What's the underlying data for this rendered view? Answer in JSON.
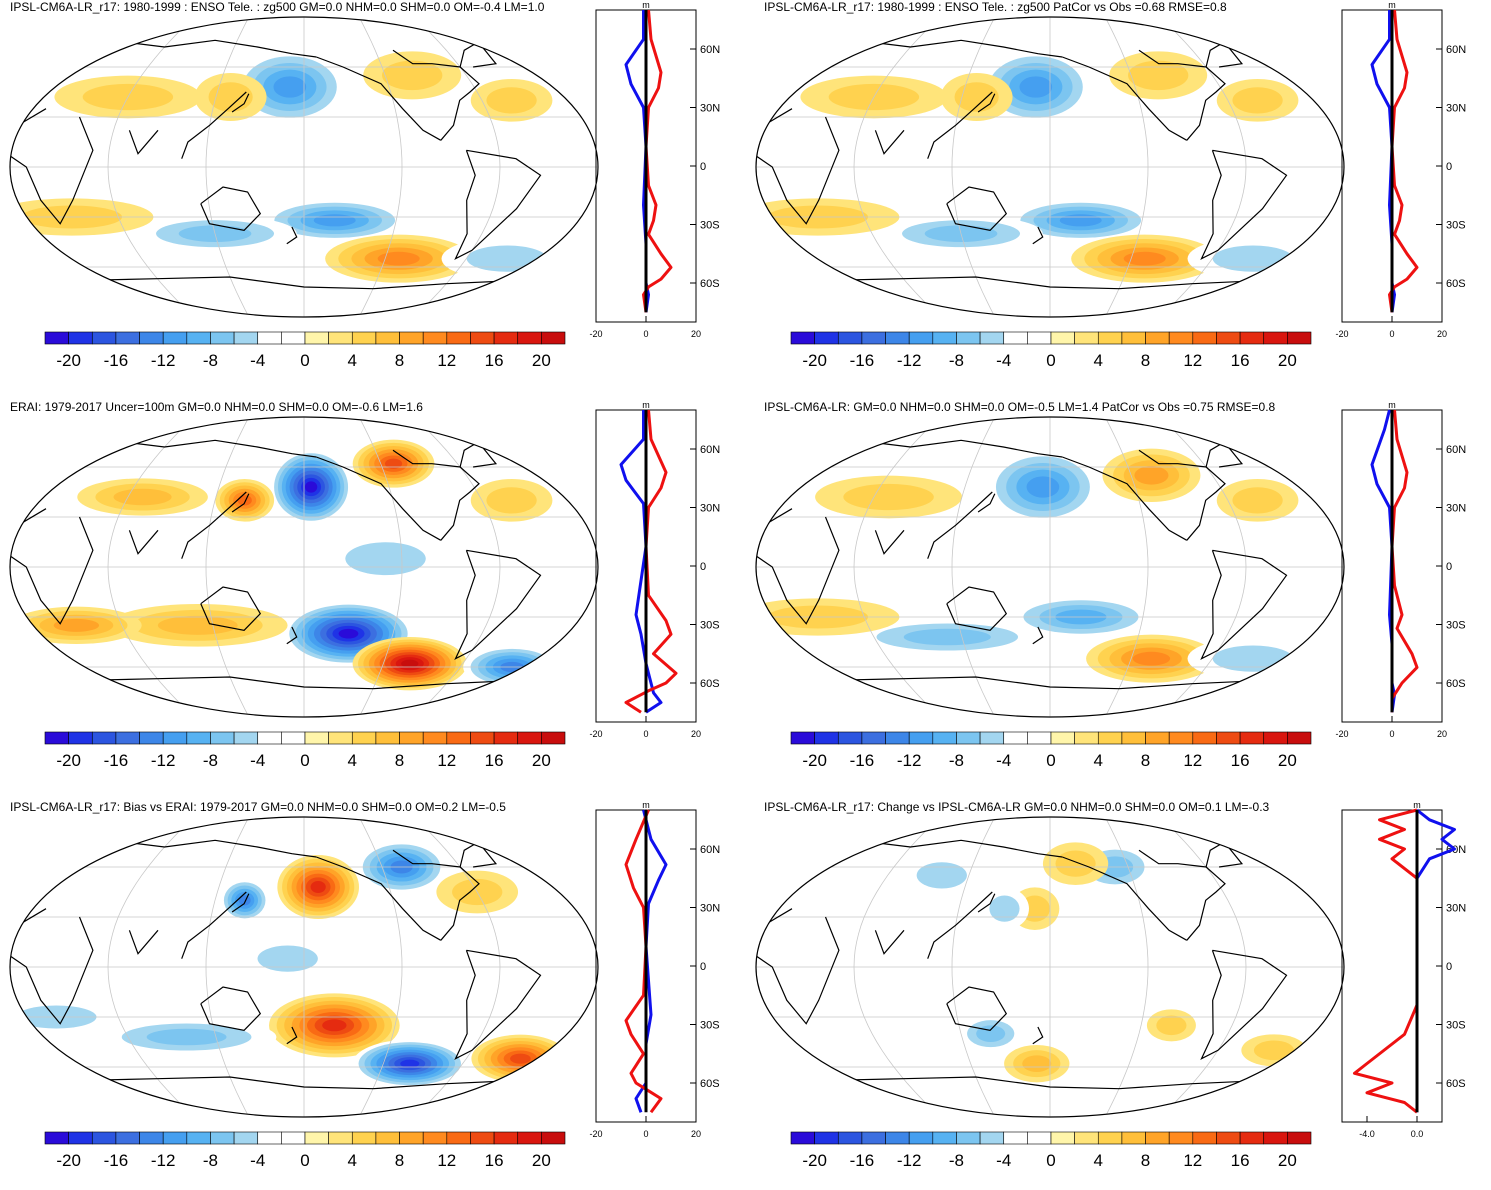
{
  "colorbar": {
    "levels": [
      -22,
      -20,
      -18,
      -16,
      -14,
      -12,
      -10,
      -8,
      -6,
      -4,
      -2,
      0,
      2,
      4,
      6,
      8,
      10,
      12,
      14,
      16,
      18,
      20,
      22
    ],
    "labels": [
      "-20",
      "-16",
      "-12",
      "-8",
      "-4",
      "0",
      "4",
      "8",
      "12",
      "16",
      "20"
    ],
    "colors": [
      "#2a0bd9",
      "#1f33e6",
      "#2c55e0",
      "#3c6fe0",
      "#3d86e8",
      "#459ff0",
      "#57b2f2",
      "#7cc5f0",
      "#a3d6f0",
      "#ffffff",
      "#ffffff",
      "#fff5aa",
      "#ffe47a",
      "#ffd24f",
      "#ffbf3a",
      "#ffa428",
      "#ff8a1f",
      "#f96a14",
      "#ee4b12",
      "#e52b10",
      "#d9160f",
      "#c80d0d"
    ]
  },
  "lat_labels": [
    "60N",
    "30N",
    "0",
    "30S",
    "60S"
  ],
  "profile_unit": "m",
  "panels": [
    {
      "title": "IPSL-CM6A-LR_r17: 1980-1999 : ENSO Tele. : zg500 GM=0.0 NHM=0.0 SHM=0.0 OM=-0.4 LM=1.0",
      "profile_xticks": [
        "-20",
        "0",
        "20"
      ],
      "anomalies": [
        {
          "lon": 170,
          "lat": 48,
          "rx": 35,
          "ry": 14,
          "v": -10
        },
        {
          "lon": 130,
          "lat": 42,
          "rx": 22,
          "ry": 9,
          "v": 5
        },
        {
          "lon": 260,
          "lat": 55,
          "rx": 30,
          "ry": 9,
          "v": 5
        },
        {
          "lon": 60,
          "lat": 42,
          "rx": 45,
          "ry": 8,
          "v": 5
        },
        {
          "lon": 320,
          "lat": 40,
          "rx": 25,
          "ry": 8,
          "v": 4
        },
        {
          "lon": 200,
          "lat": -32,
          "rx": 45,
          "ry": 8,
          "v": -10
        },
        {
          "lon": 120,
          "lat": -40,
          "rx": 50,
          "ry": 7,
          "v": -6
        },
        {
          "lon": 250,
          "lat": -55,
          "rx": 45,
          "ry": 9,
          "v": 10
        },
        {
          "lon": 30,
          "lat": -30,
          "rx": 50,
          "ry": 7,
          "v": 4
        },
        {
          "lon": 330,
          "lat": -55,
          "rx": 40,
          "ry": 8,
          "v": -5
        }
      ],
      "profile_red": [
        [
          1,
          80
        ],
        [
          2,
          65
        ],
        [
          6,
          48
        ],
        [
          5,
          40
        ],
        [
          1,
          30
        ],
        [
          0,
          10
        ],
        [
          1,
          -10
        ],
        [
          4,
          -20
        ],
        [
          3,
          -28
        ],
        [
          1,
          -35
        ],
        [
          6,
          -45
        ],
        [
          10,
          -52
        ],
        [
          6,
          -58
        ],
        [
          1,
          -62
        ],
        [
          -1,
          -66
        ],
        [
          0,
          -75
        ]
      ],
      "profile_blue": [
        [
          -1,
          80
        ],
        [
          -1,
          65
        ],
        [
          -8,
          52
        ],
        [
          -6,
          42
        ],
        [
          -1,
          30
        ],
        [
          0,
          10
        ],
        [
          -1,
          -20
        ],
        [
          0,
          -40
        ],
        [
          0,
          -60
        ],
        [
          1,
          -66
        ],
        [
          0,
          -75
        ]
      ]
    },
    {
      "title": "IPSL-CM6A-LR_r17: 1980-1999 : ENSO Tele. : zg500 PatCor vs Obs =0.68 RMSE=0.8",
      "profile_xticks": [
        "-20",
        "0",
        "20"
      ],
      "anomalies": [
        {
          "lon": 170,
          "lat": 48,
          "rx": 35,
          "ry": 14,
          "v": -10
        },
        {
          "lon": 130,
          "lat": 42,
          "rx": 22,
          "ry": 9,
          "v": 5
        },
        {
          "lon": 260,
          "lat": 55,
          "rx": 30,
          "ry": 9,
          "v": 5
        },
        {
          "lon": 60,
          "lat": 42,
          "rx": 45,
          "ry": 8,
          "v": 5
        },
        {
          "lon": 320,
          "lat": 40,
          "rx": 25,
          "ry": 8,
          "v": 4
        },
        {
          "lon": 200,
          "lat": -32,
          "rx": 45,
          "ry": 8,
          "v": -10
        },
        {
          "lon": 120,
          "lat": -40,
          "rx": 50,
          "ry": 7,
          "v": -6
        },
        {
          "lon": 250,
          "lat": -55,
          "rx": 45,
          "ry": 9,
          "v": 10
        },
        {
          "lon": 30,
          "lat": -30,
          "rx": 50,
          "ry": 7,
          "v": 4
        },
        {
          "lon": 330,
          "lat": -55,
          "rx": 40,
          "ry": 8,
          "v": -5
        }
      ],
      "profile_red": [
        [
          1,
          80
        ],
        [
          2,
          65
        ],
        [
          6,
          48
        ],
        [
          5,
          40
        ],
        [
          1,
          30
        ],
        [
          0,
          10
        ],
        [
          1,
          -10
        ],
        [
          4,
          -20
        ],
        [
          3,
          -28
        ],
        [
          1,
          -35
        ],
        [
          6,
          -45
        ],
        [
          10,
          -52
        ],
        [
          6,
          -58
        ],
        [
          1,
          -62
        ],
        [
          -1,
          -66
        ],
        [
          0,
          -75
        ]
      ],
      "profile_blue": [
        [
          -1,
          80
        ],
        [
          -1,
          65
        ],
        [
          -8,
          52
        ],
        [
          -6,
          42
        ],
        [
          -1,
          30
        ],
        [
          0,
          10
        ],
        [
          -1,
          -20
        ],
        [
          0,
          -40
        ],
        [
          0,
          -60
        ],
        [
          1,
          -66
        ],
        [
          0,
          -75
        ]
      ]
    },
    {
      "title": "ERAI: 1979-2017 Uncer=100m GM=0.0 NHM=0.0 SHM=0.0 OM=-0.6 LM=1.6",
      "profile_xticks": [
        "-20",
        "0",
        "20"
      ],
      "anomalies": [
        {
          "lon": 185,
          "lat": 48,
          "rx": 25,
          "ry": 14,
          "v": -20
        },
        {
          "lon": 250,
          "lat": 62,
          "rx": 25,
          "ry": 9,
          "v": 14
        },
        {
          "lon": 140,
          "lat": 40,
          "rx": 18,
          "ry": 8,
          "v": 12
        },
        {
          "lon": 70,
          "lat": 42,
          "rx": 40,
          "ry": 7,
          "v": 6
        },
        {
          "lon": 320,
          "lat": 40,
          "rx": 25,
          "ry": 8,
          "v": 5
        },
        {
          "lon": 210,
          "lat": -40,
          "rx": 40,
          "ry": 12,
          "v": -20
        },
        {
          "lon": 260,
          "lat": -58,
          "rx": 35,
          "ry": 10,
          "v": 20
        },
        {
          "lon": 110,
          "lat": -35,
          "rx": 55,
          "ry": 8,
          "v": 6
        },
        {
          "lon": 30,
          "lat": -35,
          "rx": 40,
          "ry": 7,
          "v": 8
        },
        {
          "lon": 340,
          "lat": -60,
          "rx": 30,
          "ry": 8,
          "v": -12
        },
        {
          "lon": 230,
          "lat": 5,
          "rx": 40,
          "ry": 10,
          "v": -4
        }
      ],
      "profile_red": [
        [
          1,
          80
        ],
        [
          2,
          65
        ],
        [
          8,
          48
        ],
        [
          6,
          40
        ],
        [
          1,
          30
        ],
        [
          0,
          10
        ],
        [
          1,
          -15
        ],
        [
          8,
          -28
        ],
        [
          10,
          -35
        ],
        [
          3,
          -45
        ],
        [
          12,
          -55
        ],
        [
          8,
          -60
        ],
        [
          1,
          -64
        ],
        [
          -8,
          -70
        ],
        [
          -2,
          -75
        ]
      ],
      "profile_blue": [
        [
          -1,
          80
        ],
        [
          -1,
          65
        ],
        [
          -10,
          52
        ],
        [
          -8,
          44
        ],
        [
          -1,
          32
        ],
        [
          0,
          10
        ],
        [
          -4,
          -25
        ],
        [
          -2,
          -35
        ],
        [
          0,
          -50
        ],
        [
          3,
          -65
        ],
        [
          6,
          -70
        ],
        [
          0,
          -75
        ]
      ]
    },
    {
      "title": "IPSL-CM6A-LR: GM=0.0 NHM=0.0 SHM=0.0 OM=-0.5 LM=1.4 PatCor vs Obs =0.75 RMSE=0.8",
      "profile_xticks": [
        "-20",
        "0",
        "20"
      ],
      "anomalies": [
        {
          "lon": 175,
          "lat": 48,
          "rx": 35,
          "ry": 14,
          "v": -10
        },
        {
          "lon": 255,
          "lat": 55,
          "rx": 30,
          "ry": 10,
          "v": 8
        },
        {
          "lon": 70,
          "lat": 42,
          "rx": 45,
          "ry": 8,
          "v": 5
        },
        {
          "lon": 320,
          "lat": 40,
          "rx": 25,
          "ry": 8,
          "v": 4
        },
        {
          "lon": 200,
          "lat": -30,
          "rx": 45,
          "ry": 8,
          "v": -8
        },
        {
          "lon": 110,
          "lat": -42,
          "rx": 60,
          "ry": 7,
          "v": -6
        },
        {
          "lon": 255,
          "lat": -55,
          "rx": 40,
          "ry": 9,
          "v": 10
        },
        {
          "lon": 30,
          "lat": -30,
          "rx": 50,
          "ry": 7,
          "v": 4
        },
        {
          "lon": 330,
          "lat": -55,
          "rx": 40,
          "ry": 8,
          "v": -5
        }
      ],
      "profile_red": [
        [
          1,
          80
        ],
        [
          2,
          65
        ],
        [
          6,
          48
        ],
        [
          5,
          40
        ],
        [
          1,
          30
        ],
        [
          0,
          10
        ],
        [
          1,
          -10
        ],
        [
          4,
          -25
        ],
        [
          2,
          -32
        ],
        [
          8,
          -45
        ],
        [
          10,
          -52
        ],
        [
          4,
          -60
        ],
        [
          0,
          -68
        ],
        [
          0,
          -75
        ]
      ],
      "profile_blue": [
        [
          -1,
          80
        ],
        [
          -3,
          70
        ],
        [
          -8,
          52
        ],
        [
          -6,
          42
        ],
        [
          -1,
          30
        ],
        [
          0,
          10
        ],
        [
          -1,
          -25
        ],
        [
          0,
          -40
        ],
        [
          0,
          -60
        ],
        [
          1,
          -66
        ],
        [
          0,
          -75
        ]
      ]
    },
    {
      "title": "IPSL-CM6A-LR_r17: Bias vs ERAI: 1979-2017 GM=0.0 NHM=0.0 SHM=0.0 OM=0.2 LM=-0.5",
      "profile_xticks": [
        "-20",
        "0",
        "20"
      ],
      "anomalies": [
        {
          "lon": 190,
          "lat": 48,
          "rx": 25,
          "ry": 12,
          "v": 16
        },
        {
          "lon": 140,
          "lat": 40,
          "rx": 15,
          "ry": 8,
          "v": -12
        },
        {
          "lon": 255,
          "lat": 60,
          "rx": 28,
          "ry": 10,
          "v": -12
        },
        {
          "lon": 300,
          "lat": 45,
          "rx": 25,
          "ry": 8,
          "v": 5
        },
        {
          "lon": 200,
          "lat": -35,
          "rx": 40,
          "ry": 12,
          "v": 16
        },
        {
          "lon": 260,
          "lat": -58,
          "rx": 35,
          "ry": 9,
          "v": -18
        },
        {
          "lon": 100,
          "lat": -42,
          "rx": 55,
          "ry": 7,
          "v": -6
        },
        {
          "lon": 340,
          "lat": -55,
          "rx": 30,
          "ry": 9,
          "v": 14
        },
        {
          "lon": 20,
          "lat": -30,
          "rx": 40,
          "ry": 7,
          "v": -5
        },
        {
          "lon": 170,
          "lat": 5,
          "rx": 30,
          "ry": 8,
          "v": -4
        }
      ],
      "profile_red": [
        [
          1,
          80
        ],
        [
          -4,
          65
        ],
        [
          -8,
          52
        ],
        [
          -5,
          40
        ],
        [
          -1,
          30
        ],
        [
          0,
          10
        ],
        [
          -1,
          -15
        ],
        [
          -8,
          -28
        ],
        [
          -6,
          -35
        ],
        [
          -1,
          -45
        ],
        [
          -6,
          -55
        ],
        [
          -4,
          -60
        ],
        [
          1,
          -64
        ],
        [
          6,
          -68
        ],
        [
          2,
          -75
        ]
      ],
      "profile_blue": [
        [
          -1,
          80
        ],
        [
          2,
          65
        ],
        [
          8,
          52
        ],
        [
          5,
          44
        ],
        [
          1,
          32
        ],
        [
          0,
          10
        ],
        [
          2,
          -25
        ],
        [
          0,
          -40
        ],
        [
          0,
          -60
        ],
        [
          -4,
          -68
        ],
        [
          -2,
          -75
        ]
      ]
    },
    {
      "title": "IPSL-CM6A-LR_r17: Change vs IPSL-CM6A-LR GM=0.0 NHM=0.0 SHM=0.0 OM=0.1 LM=-0.3",
      "profile_xticks": [
        "-4.0",
        "0.0"
      ],
      "anomalies": [
        {
          "lon": 230,
          "lat": 60,
          "rx": 25,
          "ry": 9,
          "v": -6
        },
        {
          "lon": 200,
          "lat": 62,
          "rx": 20,
          "ry": 8,
          "v": 5
        },
        {
          "lon": 100,
          "lat": 55,
          "rx": 25,
          "ry": 8,
          "v": -4
        },
        {
          "lon": 170,
          "lat": 35,
          "rx": 15,
          "ry": 8,
          "v": 4
        },
        {
          "lon": 150,
          "lat": 35,
          "rx": 15,
          "ry": 8,
          "v": -4
        },
        {
          "lon": 140,
          "lat": -40,
          "rx": 20,
          "ry": 7,
          "v": -6
        },
        {
          "lon": 170,
          "lat": -58,
          "rx": 20,
          "ry": 7,
          "v": 6
        },
        {
          "lon": 260,
          "lat": -35,
          "rx": 15,
          "ry": 6,
          "v": 4
        },
        {
          "lon": 340,
          "lat": -50,
          "rx": 20,
          "ry": 6,
          "v": 4
        }
      ],
      "profile_red": [
        [
          0,
          80
        ],
        [
          -3,
          75
        ],
        [
          -1,
          70
        ],
        [
          -3,
          65
        ],
        [
          -1,
          60
        ],
        [
          -2,
          55
        ],
        [
          0,
          45
        ],
        [
          0,
          20
        ],
        [
          0,
          0
        ],
        [
          0,
          -20
        ],
        [
          -1,
          -35
        ],
        [
          -4,
          -50
        ],
        [
          -5,
          -55
        ],
        [
          -2,
          -60
        ],
        [
          -4,
          -65
        ],
        [
          -1,
          -70
        ],
        [
          0,
          -75
        ]
      ],
      "profile_blue": [
        [
          0,
          80
        ],
        [
          1,
          75
        ],
        [
          3,
          70
        ],
        [
          2,
          65
        ],
        [
          3,
          60
        ],
        [
          1,
          55
        ],
        [
          0,
          45
        ],
        [
          0,
          20
        ],
        [
          0,
          0
        ],
        [
          0,
          -20
        ],
        [
          0,
          -40
        ],
        [
          0,
          -60
        ],
        [
          0,
          -70
        ],
        [
          0,
          -75
        ]
      ]
    }
  ]
}
